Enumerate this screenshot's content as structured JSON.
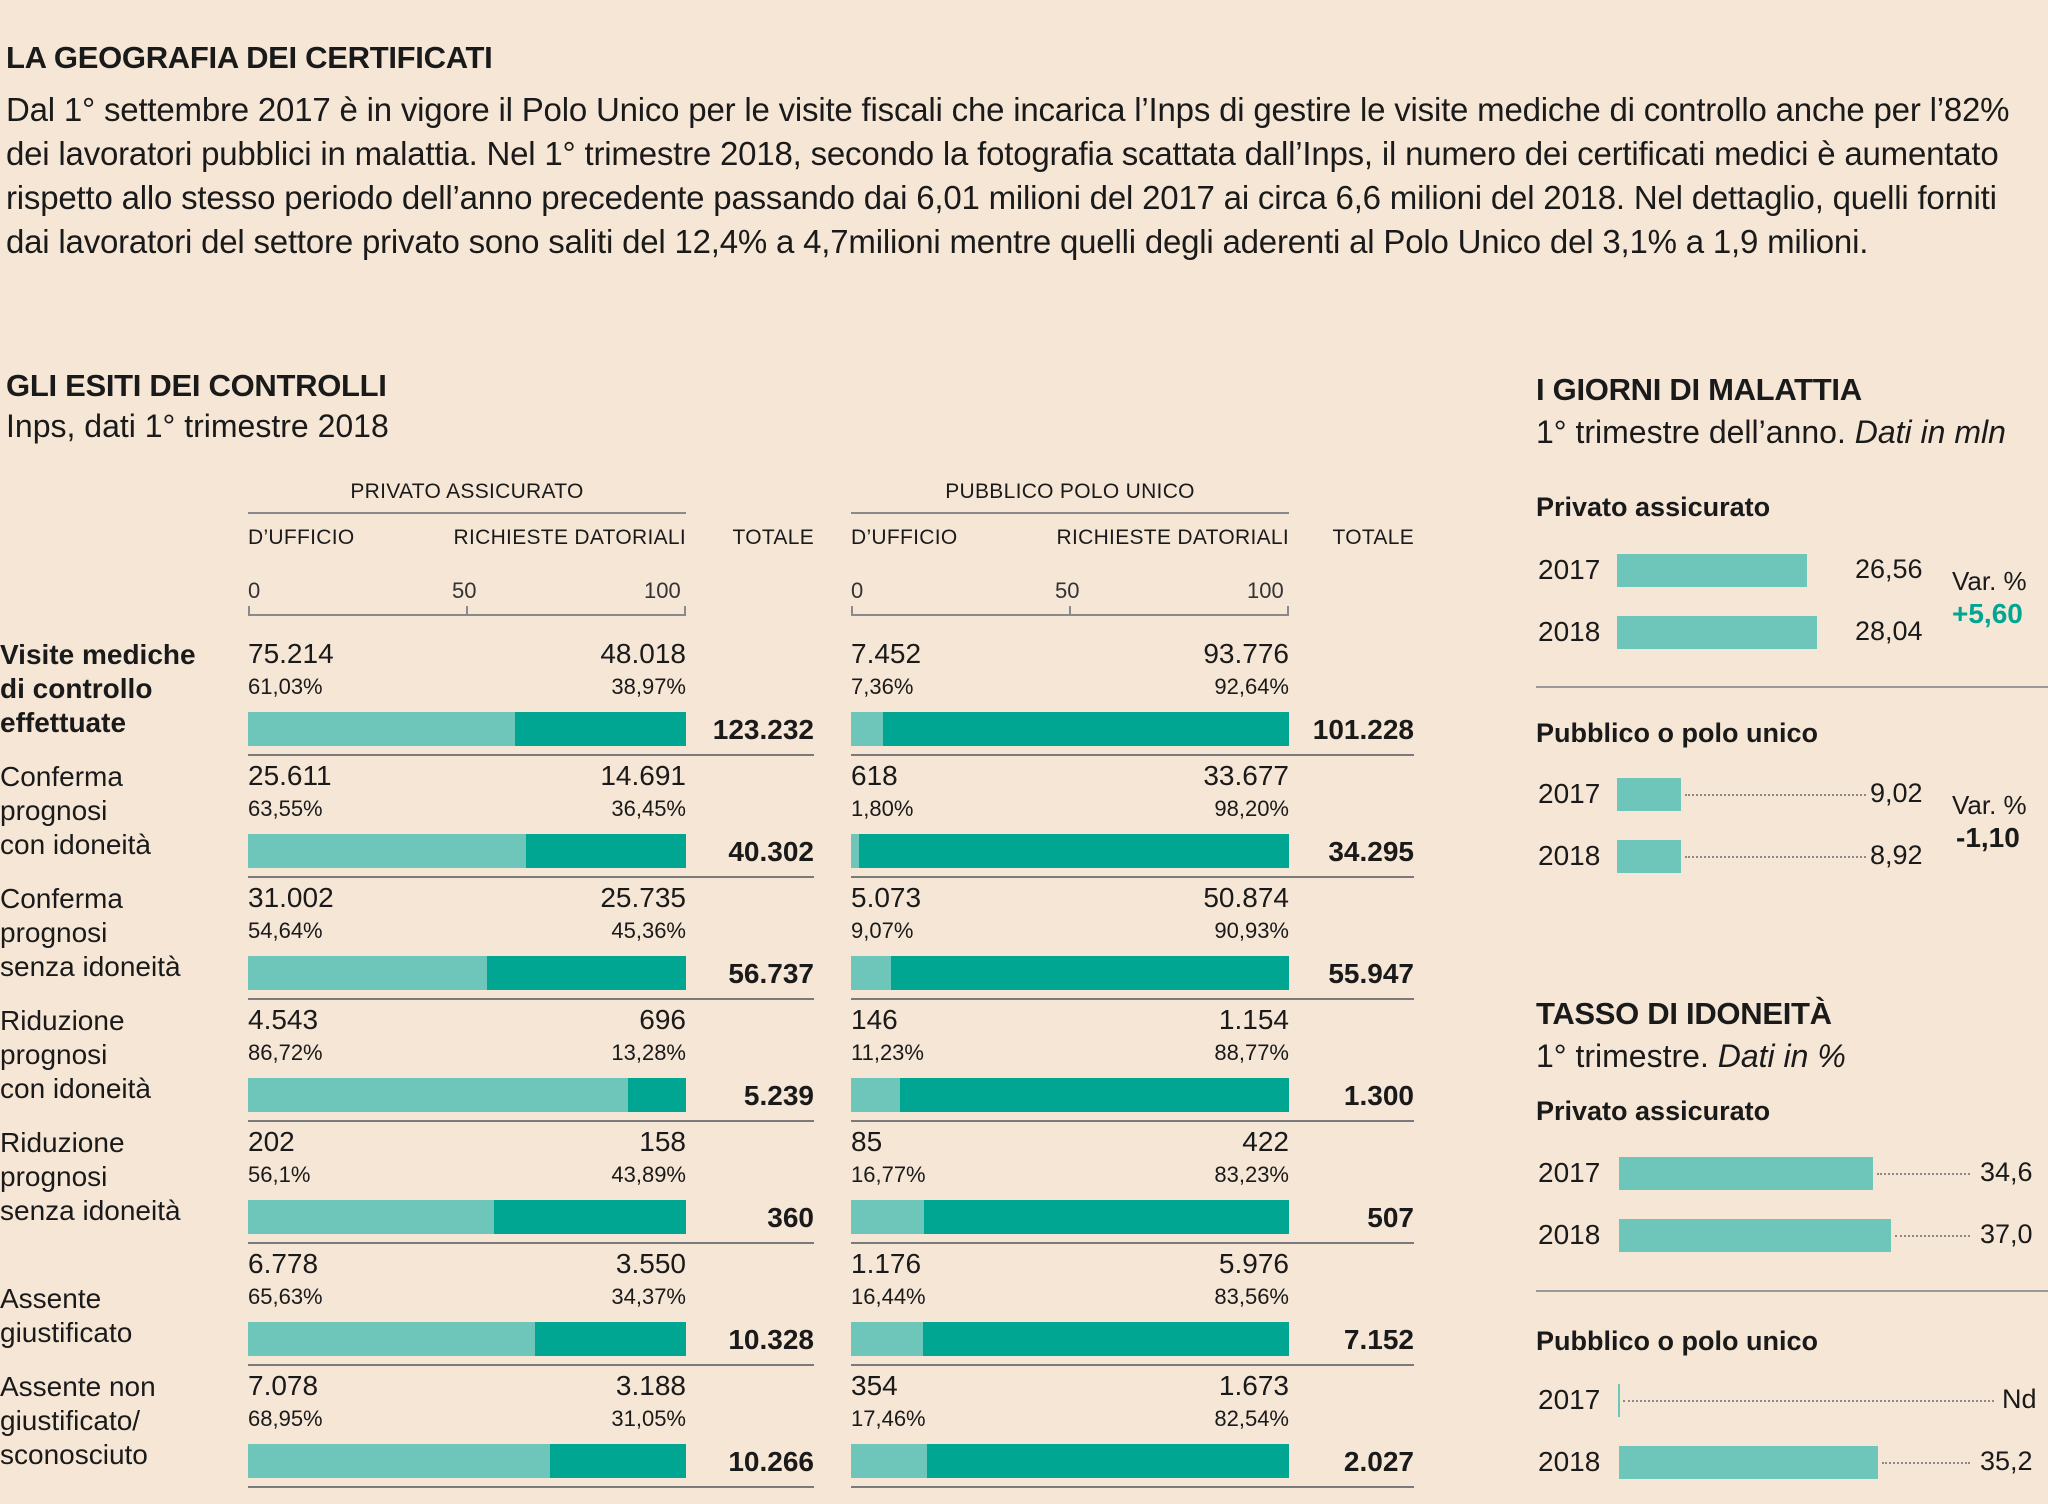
{
  "header": {
    "title": "LA GEOGRAFIA DEI CERTIFICATI",
    "intro": "Dal 1° settembre 2017 è in vigore il Polo Unico per le visite fiscali che incarica l’Inps di gestire le visite mediche di controllo anche per l’82% dei lavoratori pubblici in malattia. Nel 1° trimestre 2018, secondo la fotografia scattata dall’Inps, il numero dei certificati medici è aumentato rispetto allo stesso periodo dell’anno precedente passando dai  6,01 milioni del 2017 ai circa 6,6 milioni del 2018. Nel dettaglio, quelli forniti dai lavoratori del settore privato sono saliti del 12,4% a 4,7milioni mentre quelli degli aderenti al Polo Unico del 3,1% a 1,9 milioni."
  },
  "controls": {
    "title": "GLI ESITI DEI CONTROLLI",
    "subtitle": "Inps, dati 1° trimestre 2018",
    "private_header": "PRIVATO ASSICURATO",
    "public_header": "PUBBLICO POLO UNICO",
    "col_office": "D’UFFICIO",
    "col_requests": "RICHIESTE DATORIALI",
    "col_total": "TOTALE",
    "ticks": [
      "0",
      "50",
      "100"
    ]
  },
  "right": {
    "days_title": "I GIORNI DI MALATTIA",
    "days_subtitle": "1° trimestre dell’anno.",
    "days_subtitle_italic": "Dati in mln",
    "idoneity_title": "TASSO DI IDONEITÀ",
    "idoneity_subtitle": "1° trimestre.",
    "idoneity_subtitle_italic": "Dati in %",
    "var_label": "Var. %"
  },
  "chart_data": [
    {
      "type": "bar",
      "title": "GLI ESITI DEI CONTROLLI",
      "subtitle": "Inps, dati 1° trimestre 2018",
      "stacked": true,
      "xlim": [
        0,
        100
      ],
      "groups": [
        "PRIVATO ASSICURATO",
        "PUBBLICO POLO UNICO"
      ],
      "series_names": [
        "D’UFFICIO",
        "RICHIESTE DATORIALI"
      ],
      "rows": [
        {
          "label_lines": [
            "Visite mediche",
            "di controllo",
            "effettuate"
          ],
          "bold": true,
          "private": {
            "office": "75.214",
            "office_pct_label": "61,03%",
            "office_pct": 61.03,
            "requests": "48.018",
            "requests_pct_label": "38,97%",
            "total": "123.232"
          },
          "public": {
            "office": "7.452",
            "office_pct_label": "7,36%",
            "office_pct": 7.36,
            "requests": "93.776",
            "requests_pct_label": "92,64%",
            "total": "101.228"
          }
        },
        {
          "label_lines": [
            "Conferma",
            "prognosi",
            "con idoneità"
          ],
          "bold": false,
          "private": {
            "office": "25.611",
            "office_pct_label": "63,55%",
            "office_pct": 63.55,
            "requests": "14.691",
            "requests_pct_label": "36,45%",
            "total": "40.302"
          },
          "public": {
            "office": "618",
            "office_pct_label": "1,80%",
            "office_pct": 1.8,
            "requests": "33.677",
            "requests_pct_label": "98,20%",
            "total": "34.295"
          }
        },
        {
          "label_lines": [
            "Conferma",
            "prognosi",
            "senza idoneità"
          ],
          "bold": false,
          "private": {
            "office": "31.002",
            "office_pct_label": "54,64%",
            "office_pct": 54.64,
            "requests": "25.735",
            "requests_pct_label": "45,36%",
            "total": "56.737"
          },
          "public": {
            "office": "5.073",
            "office_pct_label": "9,07%",
            "office_pct": 9.07,
            "requests": "50.874",
            "requests_pct_label": "90,93%",
            "total": "55.947"
          }
        },
        {
          "label_lines": [
            "Riduzione",
            "prognosi",
            "con idoneità"
          ],
          "bold": false,
          "private": {
            "office": "4.543",
            "office_pct_label": "86,72%",
            "office_pct": 86.72,
            "requests": "696",
            "requests_pct_label": "13,28%",
            "total": "5.239"
          },
          "public": {
            "office": "146",
            "office_pct_label": "11,23%",
            "office_pct": 11.23,
            "requests": "1.154",
            "requests_pct_label": "88,77%",
            "total": "1.300"
          }
        },
        {
          "label_lines": [
            "Riduzione",
            "prognosi",
            "senza idoneità"
          ],
          "bold": false,
          "private": {
            "office": "202",
            "office_pct_label": "56,1%",
            "office_pct": 56.1,
            "requests": "158",
            "requests_pct_label": "43,89%",
            "total": "360"
          },
          "public": {
            "office": "85",
            "office_pct_label": "16,77%",
            "office_pct": 16.77,
            "requests": "422",
            "requests_pct_label": "83,23%",
            "total": "507"
          }
        },
        {
          "label_lines": [
            "",
            "Assente",
            "giustificato"
          ],
          "bold": false,
          "private": {
            "office": "6.778",
            "office_pct_label": "65,63%",
            "office_pct": 65.63,
            "requests": "3.550",
            "requests_pct_label": "34,37%",
            "total": "10.328"
          },
          "public": {
            "office": "1.176",
            "office_pct_label": "16,44%",
            "office_pct": 16.44,
            "requests": "5.976",
            "requests_pct_label": "83,56%",
            "total": "7.152"
          }
        },
        {
          "label_lines": [
            "Assente non",
            "giustificato/",
            "sconosciuto"
          ],
          "bold": false,
          "private": {
            "office": "7.078",
            "office_pct_label": "68,95%",
            "office_pct": 68.95,
            "requests": "3.188",
            "requests_pct_label": "31,05%",
            "total": "10.266"
          },
          "public": {
            "office": "354",
            "office_pct_label": "17,46%",
            "office_pct": 17.46,
            "requests": "1.673",
            "requests_pct_label": "82,54%",
            "total": "2.027"
          }
        }
      ]
    },
    {
      "type": "bar",
      "title": "I GIORNI DI MALATTIA",
      "subtitle": "1° trimestre dell’anno. Dati in mln",
      "xlim": [
        0,
        37
      ],
      "groups": [
        {
          "name": "Privato assicurato",
          "var": "+5,60",
          "var_positive": true,
          "bars": [
            {
              "year": "2017",
              "value": 26.56,
              "label": "26,56"
            },
            {
              "year": "2018",
              "value": 28.04,
              "label": "28,04"
            }
          ]
        },
        {
          "name": "Pubblico o polo unico",
          "var": "-1,10",
          "var_positive": false,
          "bars": [
            {
              "year": "2017",
              "value": 9.02,
              "label": "9,02"
            },
            {
              "year": "2018",
              "value": 8.92,
              "label": "8,92"
            }
          ]
        }
      ]
    },
    {
      "type": "bar",
      "title": "TASSO DI IDONEITÀ",
      "subtitle": "1° trimestre. Dati in %",
      "xlim": [
        0,
        49
      ],
      "groups": [
        {
          "name": "Privato assicurato",
          "bars": [
            {
              "year": "2017",
              "value": 34.6,
              "label": "34,6"
            },
            {
              "year": "2018",
              "value": 37.0,
              "label": "37,0"
            }
          ]
        },
        {
          "name": "Pubblico o polo unico",
          "bars": [
            {
              "year": "2017",
              "value": 0,
              "label": "Nd"
            },
            {
              "year": "2018",
              "value": 35.2,
              "label": "35,2"
            }
          ]
        }
      ]
    }
  ]
}
